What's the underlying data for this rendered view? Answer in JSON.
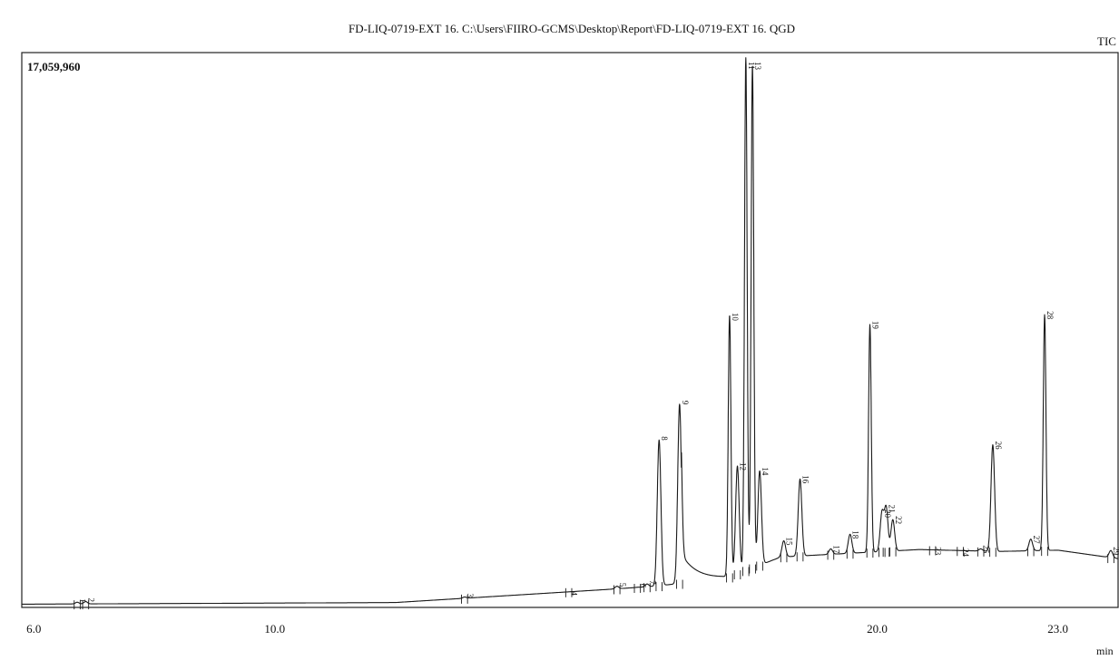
{
  "header": {
    "title": "FD-LIQ-0719-EXT 16. C:\\Users\\FIIRO-GCMS\\Desktop\\Report\\FD-LIQ-0719-EXT 16. QGD",
    "channel": "TIC"
  },
  "colors": {
    "trace": "#1a1a1a",
    "frame": "#222222",
    "background": "#ffffff"
  },
  "chart_data": {
    "type": "line",
    "title": "FD-LIQ-0719-EXT 16. C:\\Users\\FIIRO-GCMS\\Desktop\\Report\\FD-LIQ-0719-EXT 16. QGD",
    "series_label": "TIC",
    "xlabel": "min",
    "ylabel": "",
    "xlim": [
      5.8,
      24.0
    ],
    "ylim": [
      0,
      17059960
    ],
    "y_max_label": "17,059,960",
    "x_tick_labels": [
      {
        "value": 6.0,
        "label": "6.0"
      },
      {
        "value": 10.0,
        "label": "10.0"
      },
      {
        "value": 20.0,
        "label": "20.0"
      },
      {
        "value": 23.0,
        "label": "23.0"
      }
    ],
    "baseline": [
      [
        5.8,
        100000
      ],
      [
        12.0,
        150000
      ],
      [
        15.5,
        550000
      ],
      [
        16.3,
        650000
      ],
      [
        17.5,
        900000
      ],
      [
        18.4,
        1550000
      ],
      [
        19.4,
        1650000
      ],
      [
        20.7,
        1780000
      ],
      [
        22.0,
        1720000
      ],
      [
        23.0,
        1760000
      ],
      [
        24.0,
        1500000
      ]
    ],
    "peaks": [
      {
        "label": "1",
        "rt": 6.72,
        "intensity": 160000
      },
      {
        "label": "2",
        "rt": 6.86,
        "intensity": 180000
      },
      {
        "label": "3",
        "rt": 13.15,
        "intensity": 320000
      },
      {
        "label": "4",
        "rt": 14.88,
        "intensity": 380000
      },
      {
        "label": "5",
        "rt": 15.68,
        "intensity": 650000
      },
      {
        "label": "6",
        "rt": 16.02,
        "intensity": 620000
      },
      {
        "label": "7",
        "rt": 16.18,
        "intensity": 720000
      },
      {
        "label": "8",
        "rt": 16.38,
        "intensity": 5150000
      },
      {
        "label": "9",
        "rt": 16.72,
        "intensity": 6250000
      },
      {
        "label": "10",
        "rt": 17.55,
        "intensity": 8950000
      },
      {
        "label": "11",
        "rt": 17.82,
        "intensity": 16900000
      },
      {
        "label": "12",
        "rt": 17.68,
        "intensity": 4350000
      },
      {
        "label": "13",
        "rt": 17.93,
        "intensity": 16700000
      },
      {
        "label": "14",
        "rt": 18.05,
        "intensity": 4200000
      },
      {
        "label": "15",
        "rt": 18.45,
        "intensity": 2050000
      },
      {
        "label": "16",
        "rt": 18.72,
        "intensity": 3950000
      },
      {
        "label": "17",
        "rt": 19.23,
        "intensity": 1800000
      },
      {
        "label": "18",
        "rt": 19.55,
        "intensity": 2250000
      },
      {
        "label": "19",
        "rt": 19.88,
        "intensity": 8700000
      },
      {
        "label": "20",
        "rt": 20.08,
        "intensity": 2900000
      },
      {
        "label": "21",
        "rt": 20.15,
        "intensity": 3050000
      },
      {
        "label": "22",
        "rt": 20.26,
        "intensity": 2700000
      },
      {
        "label": "23",
        "rt": 20.92,
        "intensity": 1750000
      },
      {
        "label": "24",
        "rt": 21.38,
        "intensity": 1700000
      },
      {
        "label": "25",
        "rt": 21.72,
        "intensity": 1800000
      },
      {
        "label": "26",
        "rt": 21.92,
        "intensity": 5000000
      },
      {
        "label": "27",
        "rt": 22.55,
        "intensity": 2100000
      },
      {
        "label": "28",
        "rt": 22.78,
        "intensity": 9000000
      },
      {
        "label": "29",
        "rt": 23.88,
        "intensity": 1750000
      }
    ]
  }
}
